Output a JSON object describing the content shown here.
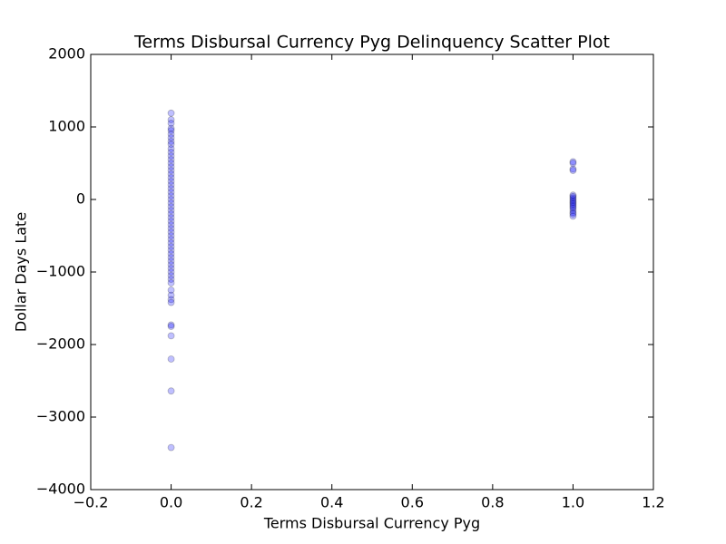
{
  "chart_data": {
    "type": "scatter",
    "title": "Terms Disbursal Currency Pyg Delinquency Scatter Plot",
    "x_label": "Terms Disbursal Currency Pyg",
    "y_label": "Dollar Days Late",
    "color": "#0000ff",
    "alpha": 0.25,
    "xlim": [
      -0.2,
      1.2
    ],
    "ylim": [
      -4000,
      2000
    ],
    "xticks": [
      {
        "value": -0.2,
        "label": "−0.2"
      },
      {
        "value": 0,
        "label": "0.0"
      },
      {
        "value": 0.2,
        "label": "0.2"
      },
      {
        "value": 0.4,
        "label": "0.4"
      },
      {
        "value": 0.6,
        "label": "0.6"
      },
      {
        "value": 0.8,
        "label": "0.8"
      },
      {
        "value": 1,
        "label": "1.0"
      },
      {
        "value": 1.2,
        "label": "1.2"
      }
    ],
    "yticks": [
      {
        "value": -4000,
        "label": "−4000"
      },
      {
        "value": -3000,
        "label": "−3000"
      },
      {
        "value": -2000,
        "label": "−2000"
      },
      {
        "value": -1000,
        "label": "−1000"
      },
      0,
      1000,
      2000
    ],
    "x": [
      0,
      0,
      0,
      0,
      0,
      0,
      0,
      0,
      0,
      0,
      0,
      0,
      0,
      0,
      0,
      0,
      0,
      0,
      0,
      0,
      0,
      0,
      0,
      0,
      0,
      0,
      0,
      0,
      0,
      0,
      0,
      0,
      0,
      0,
      0,
      0,
      0,
      0,
      0,
      0,
      0,
      0,
      0,
      0,
      0,
      0,
      0,
      0,
      0,
      0,
      0,
      0,
      0,
      0,
      0,
      0,
      0,
      1,
      1,
      1,
      1,
      1,
      1,
      1,
      1,
      1,
      1,
      1,
      1,
      1,
      1,
      1,
      1,
      1,
      1
    ],
    "y": [
      1190,
      1100,
      1050,
      980,
      950,
      900,
      850,
      800,
      760,
      700,
      650,
      600,
      550,
      500,
      450,
      400,
      350,
      300,
      250,
      200,
      150,
      100,
      50,
      0,
      -50,
      -100,
      -150,
      -200,
      -250,
      -300,
      -350,
      -400,
      -450,
      -500,
      -550,
      -600,
      -650,
      -700,
      -750,
      -800,
      -850,
      -900,
      -950,
      -1000,
      -1050,
      -1100,
      -1150,
      -1250,
      -1320,
      -1380,
      -1420,
      -1730,
      -1750,
      -1880,
      -2200,
      -2640,
      -3420,
      520,
      500,
      420,
      400,
      60,
      40,
      20,
      0,
      -20,
      -40,
      -60,
      -80,
      -100,
      -120,
      -150,
      -180,
      -200,
      -230
    ]
  }
}
